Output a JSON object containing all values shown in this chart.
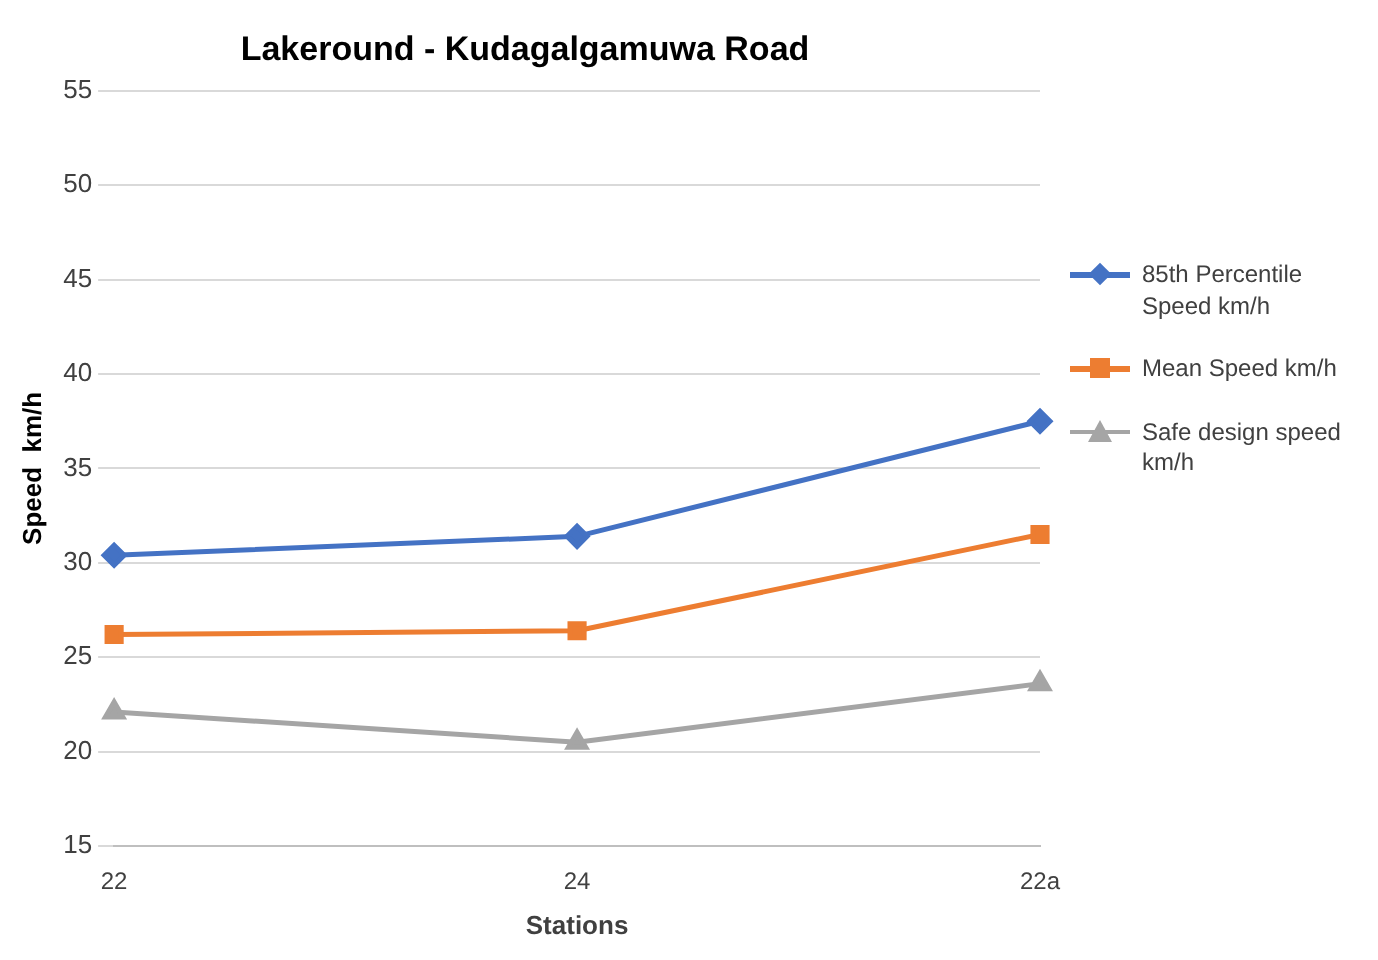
{
  "chart_data": {
    "type": "line",
    "title": "Lakeround - Kudagalgamuwa Road",
    "xlabel": "Stations",
    "ylabel": "Speed  km/h",
    "categories": [
      "22",
      "24",
      "22a"
    ],
    "series": [
      {
        "name": "85th Percentile Speed km/h",
        "color": "#4472c4",
        "marker": "diamond",
        "values": [
          30.4,
          31.4,
          37.5
        ]
      },
      {
        "name": "Mean Speed km/h",
        "color": "#ed7d31",
        "marker": "square",
        "values": [
          26.2,
          26.4,
          31.5
        ]
      },
      {
        "name": "Safe design speed km/h",
        "color": "#a5a5a5",
        "marker": "triangle",
        "values": [
          22.1,
          20.5,
          23.6
        ]
      }
    ],
    "ylim": [
      15,
      55
    ],
    "yticks": [
      15,
      20,
      25,
      30,
      35,
      40,
      45,
      50,
      55
    ],
    "grid": "y",
    "legend": "right",
    "line_style": "solid"
  }
}
